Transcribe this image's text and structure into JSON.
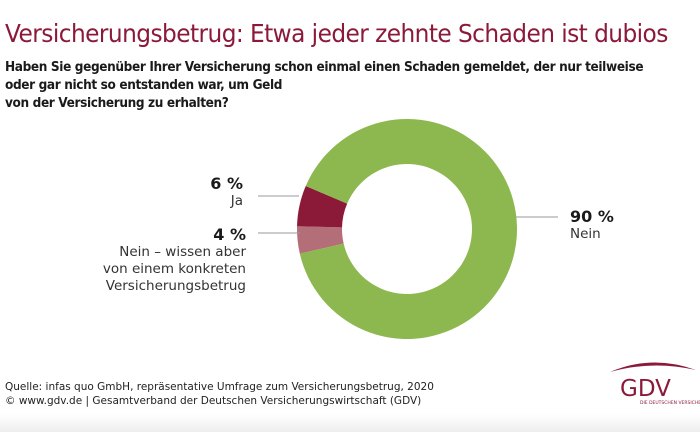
{
  "title": "Versicherungsbetrug: Etwa jeder zehnte Schaden ist dubios",
  "question": [
    "Haben Sie gegenüber Ihrer Versicherung schon einmal einen Schaden gemeldet, der nur teilweise",
    "oder gar nicht so entstanden war, um Geld",
    "von der Versicherung zu erhalten?"
  ],
  "chart_data": {
    "type": "pie",
    "style": "donut",
    "slices": [
      {
        "label": "Nein",
        "value": 90,
        "display": "90 %",
        "color": "#8cb84f"
      },
      {
        "label": "Ja",
        "value": 6,
        "display": "6 %",
        "color": "#8a1a37"
      },
      {
        "label": "Nein – wissen aber von einem konkreten Versicherungsbetrug",
        "lines": [
          "Nein – wissen aber",
          "von einem konkreten",
          "Versicherungsbetrug"
        ],
        "value": 4,
        "display": "4 %",
        "color": "#b46e78"
      }
    ]
  },
  "source": [
    "Quelle: infas quo GmbH, repräsentative Umfrage zum Versicherungsbetrug, 2020",
    "© www.gdv.de | Gesamtverband der Deutschen Versicherungswirtschaft (GDV)"
  ],
  "logo": {
    "text": "GDV",
    "tagline": "DIE DEUTSCHEN VERSICHERER",
    "color": "#8b1a3a"
  }
}
